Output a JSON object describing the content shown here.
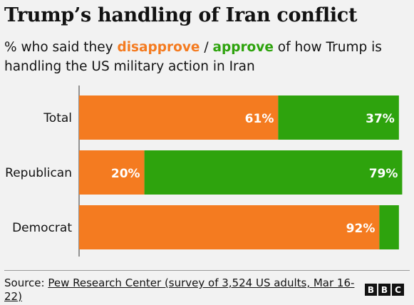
{
  "header": {
    "title": "Trump’s handling of Iran conflict",
    "subtitle_prefix": "% who said they ",
    "subtitle_disapprove": "disapprove",
    "subtitle_sep": " / ",
    "subtitle_approve": "approve",
    "subtitle_line1_suffix": " of how Trump is",
    "subtitle_line2": "handling the US military action in Iran"
  },
  "colors": {
    "disapprove": "#f47b20",
    "approve": "#2ea30d",
    "background": "#f2f2f2"
  },
  "chart_data": {
    "type": "bar",
    "orientation": "horizontal",
    "stacked": true,
    "categories": [
      "Total",
      "Republican",
      "Democrat"
    ],
    "series": [
      {
        "name": "disapprove",
        "values": [
          61,
          20,
          92
        ],
        "labels": [
          "61%",
          "20%",
          "92%"
        ],
        "color": "#f47b20"
      },
      {
        "name": "approve",
        "values": [
          37,
          79,
          6
        ],
        "labels": [
          "37%",
          "79%",
          ""
        ],
        "color": "#2ea30d"
      }
    ],
    "xlim": [
      0,
      100
    ],
    "grid": false
  },
  "footer": {
    "source_label": "Source: ",
    "source_link": "Pew Research Center (survey of 3,524 US adults, Mar 16-22)",
    "logo_letters": [
      "B",
      "B",
      "C"
    ]
  }
}
